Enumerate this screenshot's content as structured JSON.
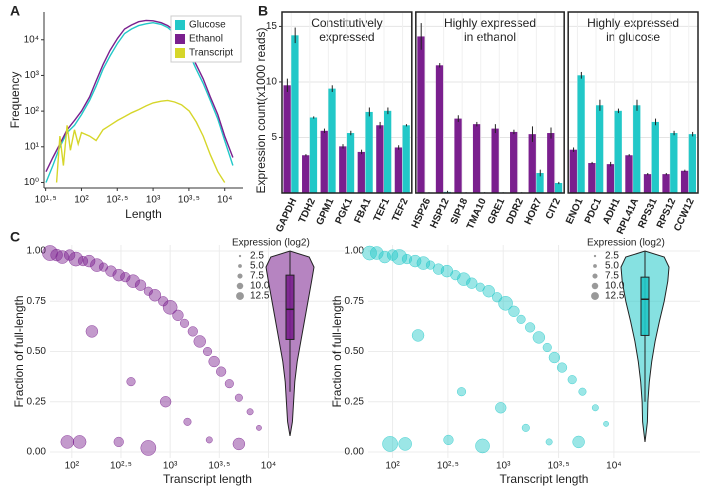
{
  "chart_data": [
    {
      "type": "line",
      "panel": "A",
      "xlabel": "Length",
      "ylabel": "Frequency",
      "log_x": true,
      "log_y": true,
      "legend": "top-right",
      "xlim": [
        30,
        18000
      ],
      "ylim": [
        0.7,
        60000
      ],
      "xticks": [
        {
          "value": 31.62,
          "label": "10¹·⁵"
        },
        {
          "value": 100,
          "label": "10²"
        },
        {
          "value": 316.2,
          "label": "10²·⁵"
        },
        {
          "value": 1000,
          "label": "10³"
        },
        {
          "value": 3162,
          "label": "10³·⁵"
        },
        {
          "value": 10000,
          "label": "10⁴"
        }
      ],
      "yticks": [
        {
          "value": 1,
          "label": "10⁰"
        },
        {
          "value": 10,
          "label": "10¹"
        },
        {
          "value": 100,
          "label": "10²"
        },
        {
          "value": 1000,
          "label": "10³"
        },
        {
          "value": 10000,
          "label": "10⁴"
        }
      ],
      "series": [
        {
          "name": "Glucose",
          "color": "#22c8c8",
          "x": [
            32,
            40,
            50,
            63,
            80,
            100,
            130,
            160,
            200,
            250,
            320,
            400,
            500,
            630,
            800,
            1000,
            1300,
            1600,
            2000,
            2500,
            3200,
            4000,
            5000,
            6300,
            8000,
            10000,
            13000
          ],
          "values": [
            1,
            3,
            10,
            25,
            40,
            80,
            200,
            500,
            1500,
            3500,
            8000,
            15000,
            20000,
            25000,
            28000,
            30000,
            27000,
            22000,
            15000,
            9000,
            4000,
            1500,
            600,
            200,
            60,
            15,
            3
          ]
        },
        {
          "name": "Ethanol",
          "color": "#7a1f8e",
          "x": [
            32,
            40,
            50,
            63,
            80,
            100,
            130,
            160,
            200,
            250,
            320,
            400,
            500,
            630,
            800,
            1000,
            1300,
            1600,
            2000,
            2500,
            3200,
            4000,
            5000,
            6300,
            8000,
            10000,
            13000
          ],
          "values": [
            2,
            5,
            12,
            30,
            55,
            100,
            250,
            700,
            2000,
            5000,
            11000,
            20000,
            26000,
            32000,
            35000,
            34000,
            30000,
            25000,
            18000,
            10000,
            5000,
            2000,
            800,
            250,
            80,
            20,
            5
          ]
        },
        {
          "name": "Transcript",
          "color": "#d6d62a",
          "x": [
            45,
            50,
            56,
            63,
            70,
            80,
            90,
            100,
            130,
            160,
            200,
            250,
            320,
            400,
            500,
            630,
            800,
            1000,
            1300,
            1600,
            2000,
            2500,
            3200,
            4000,
            5000,
            6300,
            8000,
            10000
          ],
          "values": [
            1,
            20,
            3,
            40,
            8,
            30,
            12,
            25,
            20,
            15,
            30,
            40,
            55,
            70,
            90,
            110,
            140,
            170,
            190,
            200,
            180,
            150,
            100,
            50,
            20,
            6,
            2,
            1
          ]
        }
      ]
    },
    {
      "type": "bar",
      "panel": "B",
      "ylabel": "Expression count(x1000 reads)",
      "ylim": [
        0,
        16.3
      ],
      "yticks": [
        5,
        10,
        15
      ],
      "facets": [
        {
          "title": [
            "Constitutively",
            "expressed"
          ],
          "categories": [
            "GAPDH",
            "TDH2",
            "GPM1",
            "PGK1",
            "FBA1",
            "TEF1",
            "TEF2"
          ]
        },
        {
          "title": [
            "Highly expressed",
            "in ethanol"
          ],
          "categories": [
            "HSP26",
            "HSP12",
            "SIP18",
            "TMA10",
            "GRE1",
            "DDR2",
            "HOR7",
            "CIT2"
          ]
        },
        {
          "title": [
            "Highly expressed",
            "in glucose"
          ],
          "categories": [
            "ENO1",
            "PDC1",
            "ADH1",
            "RPL41A",
            "RPS31",
            "RPS12",
            "CCW12"
          ]
        }
      ],
      "series": [
        {
          "color": "#7a1f8e",
          "values": [
            9.7,
            3.4,
            5.6,
            4.2,
            3.7,
            6.1,
            4.1,
            14.1,
            11.5,
            6.7,
            6.2,
            5.8,
            5.5,
            5.3,
            5.4,
            3.9,
            2.7,
            2.6,
            3.4,
            1.7,
            1.7,
            2.0
          ],
          "errors": [
            0.6,
            0.1,
            0.2,
            0.2,
            0.2,
            0.3,
            0.2,
            1.2,
            0.2,
            0.3,
            0.2,
            0.4,
            0.2,
            0.7,
            0.5,
            0.2,
            0.1,
            0.2,
            0.1,
            0.1,
            0.1,
            0.1
          ]
        },
        {
          "color": "#22c8c8",
          "values": [
            14.2,
            6.8,
            9.4,
            5.4,
            7.3,
            7.4,
            6.1,
            0.05,
            0.1,
            0.05,
            0.05,
            0.05,
            0.05,
            1.8,
            0.9,
            10.6,
            7.9,
            7.4,
            7.9,
            6.4,
            5.4,
            5.3
          ],
          "errors": [
            0.7,
            0.1,
            0.3,
            0.2,
            0.4,
            0.3,
            0.1,
            0.02,
            0.1,
            0.02,
            0.02,
            0.02,
            0.02,
            0.3,
            0.1,
            0.3,
            0.5,
            0.2,
            0.5,
            0.3,
            0.2,
            0.2
          ]
        }
      ]
    },
    {
      "type": "scatter",
      "panel": "C",
      "xlabel": "Transcript length",
      "ylabel": "Fraction of full-length",
      "log_x": true,
      "grid": true,
      "xlim": [
        60,
        60000
      ],
      "ylim": [
        -0.03,
        1.03
      ],
      "xticks": [
        {
          "value": 100,
          "label": "10²"
        },
        {
          "value": 316.2,
          "label": "10²·⁵"
        },
        {
          "value": 1000,
          "label": "10³"
        },
        {
          "value": 3162,
          "label": "10³·⁵"
        },
        {
          "value": 10000,
          "label": "10⁴"
        }
      ],
      "yticks": [
        {
          "value": 0,
          "label": "0.00"
        },
        0.25,
        {
          "value": 0.5,
          "label": "0.50"
        },
        0.75,
        {
          "value": 1,
          "label": "1.00"
        }
      ],
      "color": "#7a1f8e",
      "x": [
        60,
        70,
        80,
        95,
        110,
        130,
        150,
        180,
        210,
        250,
        300,
        350,
        420,
        500,
        600,
        700,
        850,
        1000,
        1200,
        1400,
        1700,
        2000,
        2400,
        2800,
        3300,
        4000,
        5000,
        6500,
        8000,
        90,
        160,
        400,
        900,
        1500,
        2500,
        600,
        300,
        120,
        5000
      ],
      "y": [
        0.99,
        0.98,
        0.97,
        0.98,
        0.96,
        0.95,
        0.95,
        0.93,
        0.92,
        0.9,
        0.88,
        0.87,
        0.85,
        0.83,
        0.8,
        0.78,
        0.75,
        0.72,
        0.68,
        0.64,
        0.6,
        0.55,
        0.5,
        0.45,
        0.4,
        0.34,
        0.27,
        0.2,
        0.12,
        0.05,
        0.6,
        0.35,
        0.25,
        0.15,
        0.06,
        0.02,
        0.05,
        0.05,
        0.04
      ],
      "size": [
        12,
        9,
        10,
        8,
        11,
        7,
        9,
        10,
        6,
        8,
        9,
        7,
        10,
        8,
        6,
        9,
        7,
        11,
        8,
        6,
        7,
        9,
        6,
        8,
        7,
        6,
        5,
        4,
        3,
        10,
        9,
        6,
        8,
        5,
        4,
        12,
        7,
        10,
        9
      ],
      "size_legend": {
        "title": "Expression (log2)",
        "values": [
          2.5,
          {
            "value": 5,
            "label": "5.0"
          },
          7.5,
          {
            "value": 10,
            "label": "10.0"
          },
          12.5
        ]
      },
      "violin": {
        "y": [
          0.08,
          0.15,
          0.25,
          0.35,
          0.45,
          0.55,
          0.65,
          0.75,
          0.85,
          0.92,
          0.97,
          1.0
        ],
        "density": [
          0,
          0.1,
          0.15,
          0.2,
          0.3,
          0.45,
          0.6,
          0.75,
          0.9,
          1,
          0.8,
          0
        ],
        "lower": 0.3,
        "q1": 0.56,
        "median": 0.71,
        "q3": 0.88,
        "upper": 1.0
      }
    },
    {
      "type": "scatter",
      "xlabel": "Transcript length",
      "ylabel": "Fraction of full-length",
      "log_x": true,
      "grid": true,
      "xlim": [
        60,
        60000
      ],
      "ylim": [
        -0.03,
        1.03
      ],
      "xticks": [
        {
          "value": 100,
          "label": "10²"
        },
        {
          "value": 316.2,
          "label": "10²·⁵"
        },
        {
          "value": 1000,
          "label": "10³"
        },
        {
          "value": 3162,
          "label": "10³·⁵"
        },
        {
          "value": 10000,
          "label": "10⁴"
        }
      ],
      "yticks": [
        {
          "value": 0,
          "label": "0.00"
        },
        0.25,
        {
          "value": 0.5,
          "label": "0.50"
        },
        0.75,
        {
          "value": 1,
          "label": "1.00"
        }
      ],
      "color": "#22c8c8",
      "x": [
        62,
        72,
        85,
        100,
        115,
        135,
        160,
        190,
        220,
        260,
        310,
        370,
        440,
        520,
        620,
        740,
        880,
        1050,
        1250,
        1450,
        1750,
        2100,
        2500,
        2900,
        3400,
        4200,
        5200,
        6800,
        8500,
        95,
        170,
        420,
        950,
        1600,
        2600,
        650,
        320,
        130,
        4800
      ],
      "y": [
        0.99,
        0.99,
        0.97,
        0.98,
        0.97,
        0.96,
        0.95,
        0.94,
        0.93,
        0.91,
        0.9,
        0.88,
        0.86,
        0.84,
        0.82,
        0.8,
        0.77,
        0.74,
        0.7,
        0.66,
        0.62,
        0.57,
        0.52,
        0.47,
        0.42,
        0.36,
        0.3,
        0.22,
        0.14,
        0.04,
        0.58,
        0.3,
        0.22,
        0.12,
        0.05,
        0.03,
        0.06,
        0.04,
        0.05
      ],
      "size": [
        11,
        10,
        9,
        8,
        12,
        7,
        9,
        10,
        6,
        8,
        9,
        7,
        10,
        8,
        6,
        9,
        7,
        11,
        8,
        6,
        7,
        9,
        6,
        8,
        7,
        6,
        5,
        4,
        3,
        12,
        9,
        6,
        8,
        5,
        4,
        11,
        7,
        10,
        9
      ],
      "size_legend": {
        "title": "Expression (log2)",
        "values": [
          2.5,
          {
            "value": 5,
            "label": "5.0"
          },
          7.5,
          {
            "value": 10,
            "label": "10.0"
          },
          12.5
        ]
      },
      "violin": {
        "y": [
          0.05,
          0.15,
          0.25,
          0.35,
          0.45,
          0.55,
          0.65,
          0.75,
          0.85,
          0.92,
          0.97,
          1.0
        ],
        "density": [
          0,
          0.1,
          0.12,
          0.18,
          0.28,
          0.42,
          0.6,
          0.8,
          0.95,
          1,
          0.8,
          0
        ],
        "lower": 0.25,
        "q1": 0.58,
        "median": 0.76,
        "q3": 0.87,
        "upper": 1.0
      }
    }
  ]
}
